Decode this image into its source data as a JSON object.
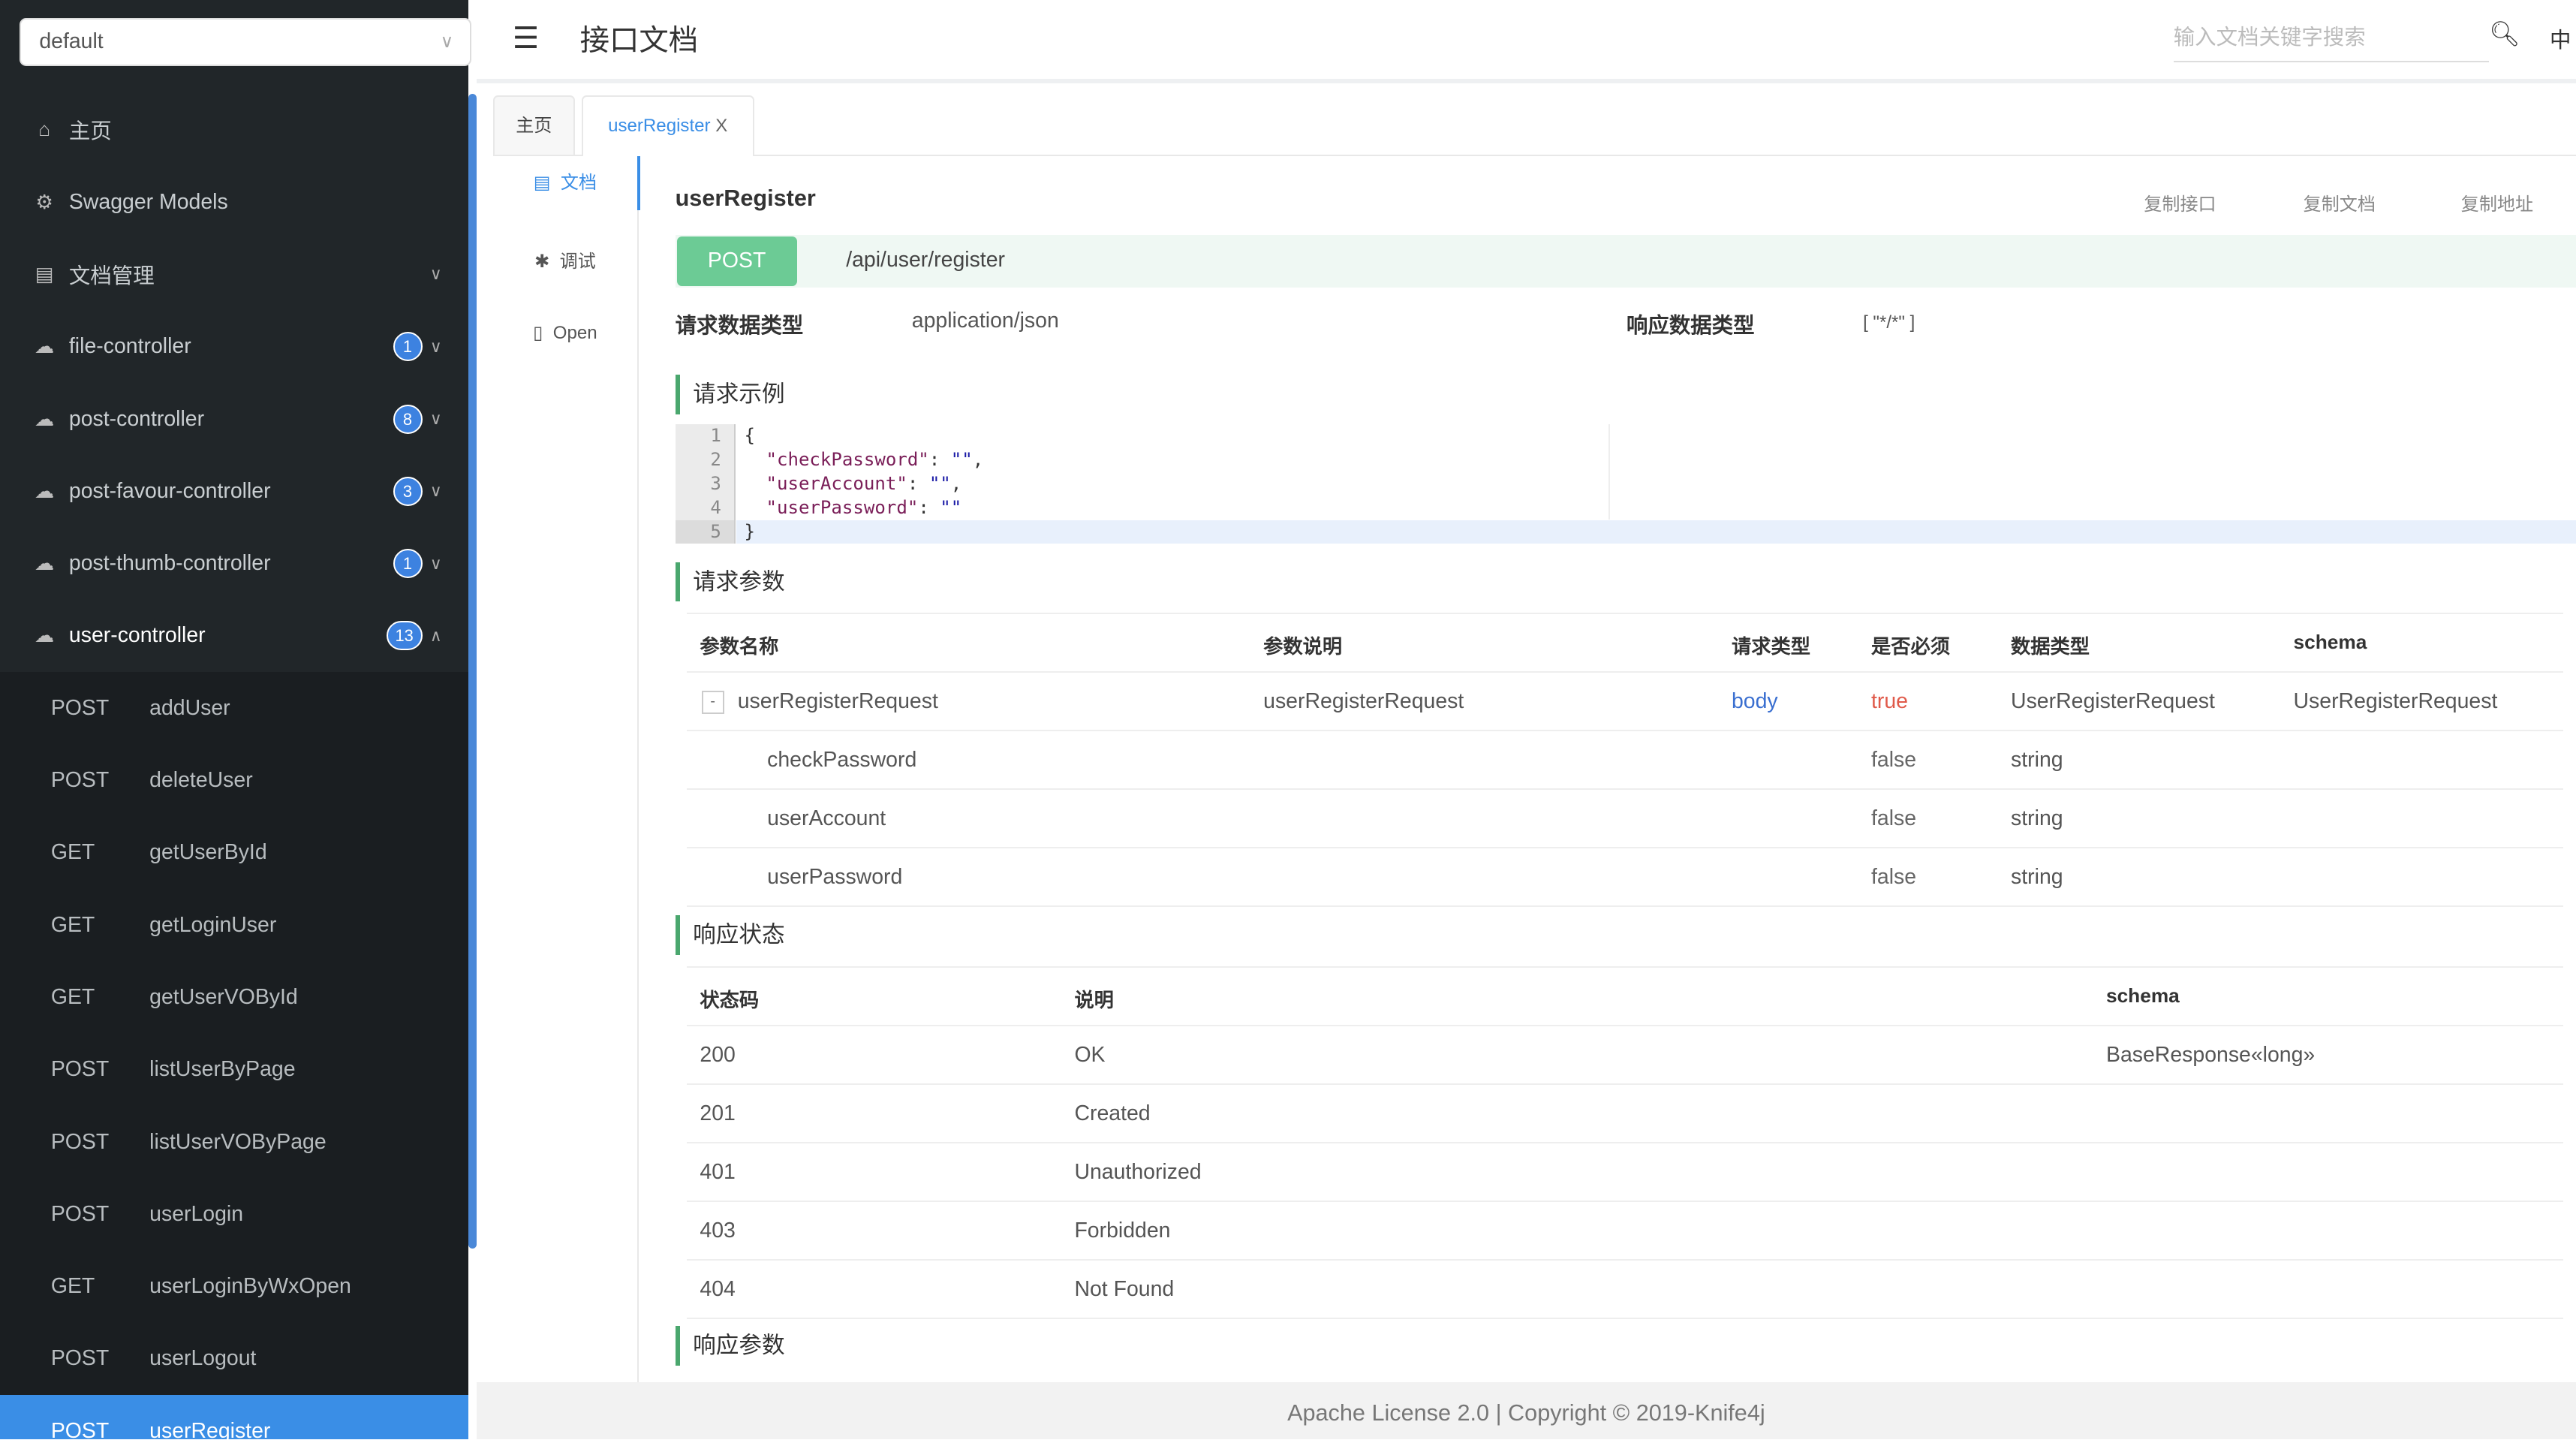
{
  "sidebar": {
    "group_select": "default",
    "menu": [
      {
        "label": "主页",
        "icon": "home-icon"
      },
      {
        "label": "Swagger Models",
        "icon": "cube-icon"
      },
      {
        "label": "文档管理",
        "icon": "doc-gear-icon"
      },
      {
        "label": "file-controller",
        "badge": "1"
      },
      {
        "label": "post-controller",
        "badge": "8"
      },
      {
        "label": "post-favour-controller",
        "badge": "3"
      },
      {
        "label": "post-thumb-controller",
        "badge": "1"
      },
      {
        "label": "user-controller",
        "badge": "13"
      }
    ],
    "endpoints": [
      {
        "method": "POST",
        "name": "addUser"
      },
      {
        "method": "POST",
        "name": "deleteUser"
      },
      {
        "method": "GET",
        "name": "getUserById"
      },
      {
        "method": "GET",
        "name": "getLoginUser"
      },
      {
        "method": "GET",
        "name": "getUserVOById"
      },
      {
        "method": "POST",
        "name": "listUserByPage"
      },
      {
        "method": "POST",
        "name": "listUserVOByPage"
      },
      {
        "method": "POST",
        "name": "userLogin"
      },
      {
        "method": "GET",
        "name": "userLoginByWxOpen"
      },
      {
        "method": "POST",
        "name": "userLogout"
      },
      {
        "method": "POST",
        "name": "userRegister"
      }
    ]
  },
  "header": {
    "title": "接口文档",
    "search_placeholder": "输入文档关键字搜索",
    "lang": "中"
  },
  "tabs": [
    {
      "label": "主页"
    },
    {
      "label": "userRegister",
      "close": "X"
    }
  ],
  "subnav": [
    {
      "label": "文档"
    },
    {
      "label": "调试"
    },
    {
      "label": "Open"
    }
  ],
  "api": {
    "title": "userRegister",
    "copy": [
      "复制接口",
      "复制文档",
      "复制地址"
    ],
    "method": "POST",
    "path": "/api/user/register",
    "req_type_label": "请求数据类型",
    "req_type": "application/json",
    "resp_type_label": "响应数据类型",
    "resp_type": "[ \"*/*\" ]"
  },
  "sections": {
    "example": "请求示例",
    "params": "请求参数",
    "status": "响应状态",
    "resp_params": "响应参数"
  },
  "code": {
    "lines": [
      "1",
      "2",
      "3",
      "4",
      "5"
    ],
    "open": "{",
    "close": "}",
    "entries": [
      {
        "key": "\"checkPassword\"",
        "val": "\"\"",
        "comma": ","
      },
      {
        "key": "\"userAccount\"",
        "val": "\"\"",
        "comma": ","
      },
      {
        "key": "\"userPassword\"",
        "val": "\"\"",
        "comma": ""
      }
    ]
  },
  "params": {
    "headers": [
      "参数名称",
      "参数说明",
      "请求类型",
      "是否必须",
      "数据类型",
      "schema"
    ],
    "rows": [
      {
        "name": "userRegisterRequest",
        "desc": "userRegisterRequest",
        "in": "body",
        "required": "true",
        "type": "UserRegisterRequest",
        "schema": "UserRegisterRequest",
        "toggle": "-"
      },
      {
        "name": "checkPassword",
        "desc": "",
        "in": "",
        "required": "false",
        "type": "string",
        "schema": ""
      },
      {
        "name": "userAccount",
        "desc": "",
        "in": "",
        "required": "false",
        "type": "string",
        "schema": ""
      },
      {
        "name": "userPassword",
        "desc": "",
        "in": "",
        "required": "false",
        "type": "string",
        "schema": ""
      }
    ]
  },
  "status": {
    "headers": [
      "状态码",
      "说明",
      "schema"
    ],
    "rows": [
      {
        "code": "200",
        "desc": "OK",
        "schema": "BaseResponse«long»"
      },
      {
        "code": "201",
        "desc": "Created",
        "schema": ""
      },
      {
        "code": "401",
        "desc": "Unauthorized",
        "schema": ""
      },
      {
        "code": "403",
        "desc": "Forbidden",
        "schema": ""
      },
      {
        "code": "404",
        "desc": "Not Found",
        "schema": ""
      }
    ]
  },
  "footer": "Apache License 2.0 | Copyright © 2019-Knife4j",
  "colors": {
    "sidebar_bg": "#212629",
    "accent": "#3a8ee6",
    "post_green": "#6ccb95",
    "section_bar": "#4aa76e"
  }
}
